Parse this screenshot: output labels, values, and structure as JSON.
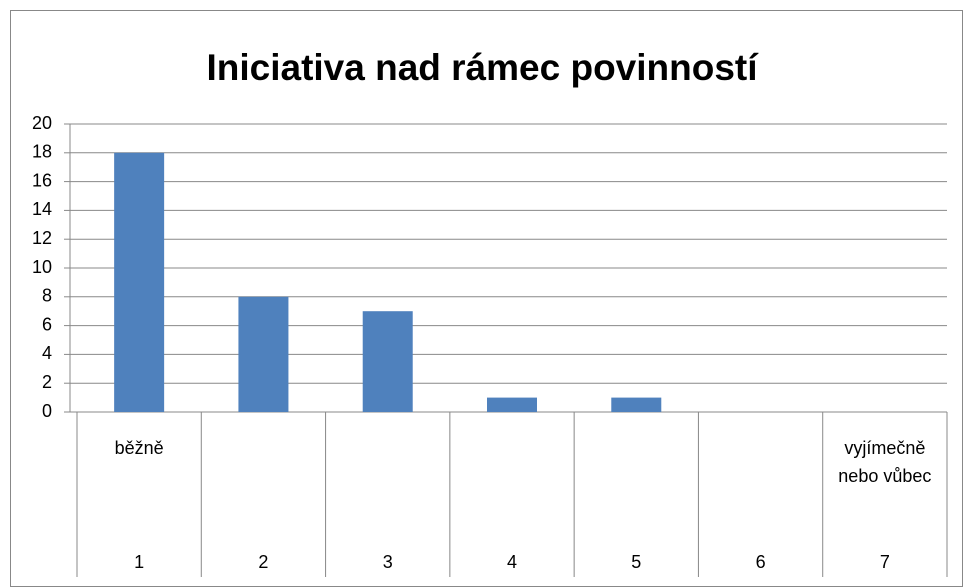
{
  "chart_data": {
    "type": "bar",
    "title": "Iniciativa nad rámec povinností",
    "categories": [
      "1",
      "2",
      "3",
      "4",
      "5",
      "6",
      "7"
    ],
    "group_labels": [
      "běžně",
      null,
      null,
      null,
      null,
      null,
      "vyjímečně nebo vůbec"
    ],
    "values": [
      18,
      8,
      7,
      1,
      1,
      0,
      0
    ],
    "color": "#4f81bd",
    "ylim": [
      0,
      20
    ],
    "yticks": [
      0,
      2,
      4,
      6,
      8,
      10,
      12,
      14,
      16,
      18,
      20
    ],
    "grid": true
  }
}
